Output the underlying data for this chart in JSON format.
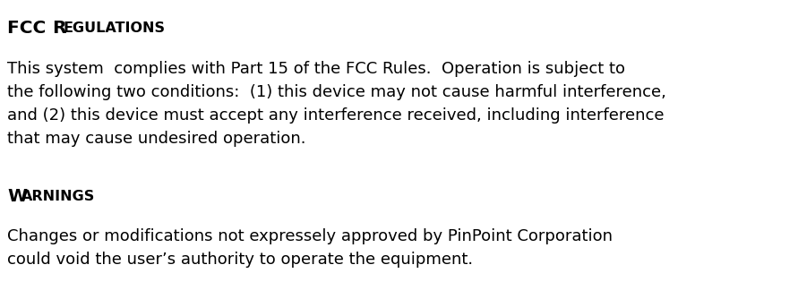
{
  "background_color": "#ffffff",
  "text_color": "#000000",
  "body1_line1": "This system  complies with Part 15 of the FCC Rules.  Operation is subject to",
  "body1_line2": "the following two conditions:  (1) this device may not cause harmful interference,",
  "body1_line3": "and (2) this device must accept any interference received, including interference",
  "body1_line4": "that may cause undesired operation.",
  "body2_line1": "Changes or modifications not expressely approved by PinPoint Corporation",
  "body2_line2": "could void the user’s authority to operate the equipment.",
  "heading_fontsize": 14.5,
  "body_fontsize": 13.0,
  "small_caps_fontsize": 11.5,
  "fig_width": 8.91,
  "fig_height": 3.34,
  "dpi": 100
}
